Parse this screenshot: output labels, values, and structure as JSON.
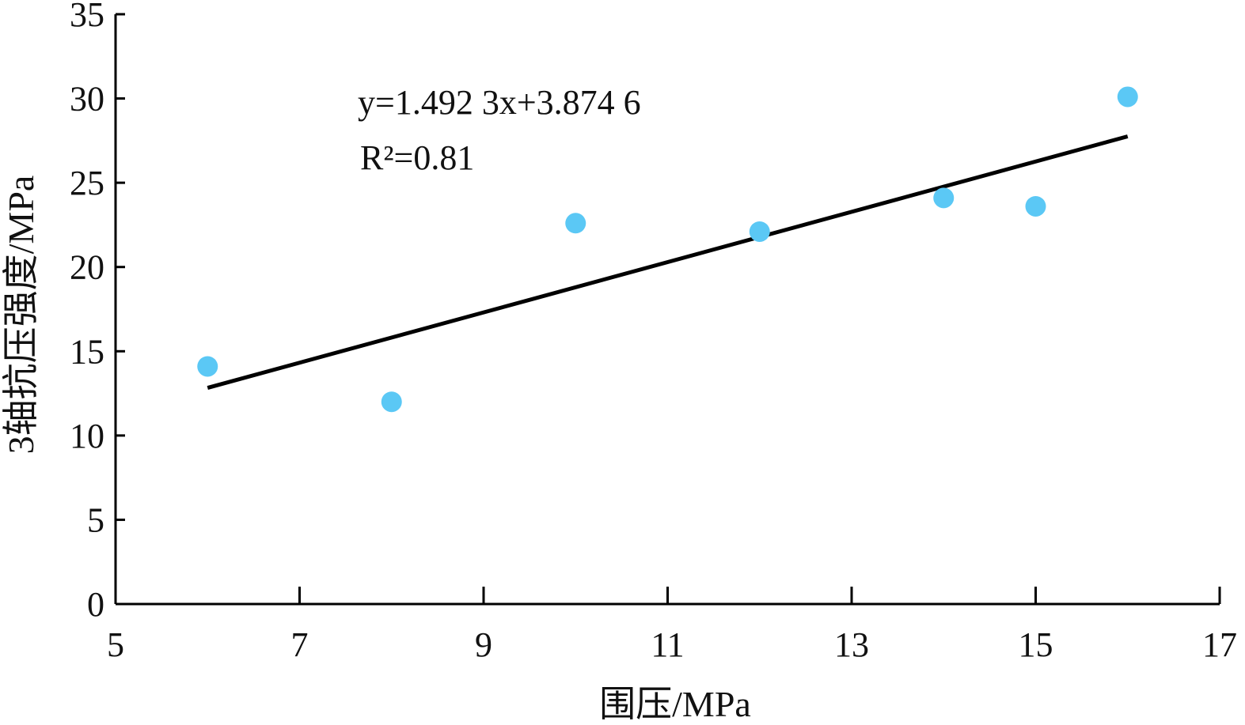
{
  "chart_data": {
    "type": "scatter",
    "x": [
      6,
      8,
      10,
      12,
      14,
      15,
      16
    ],
    "y": [
      14.1,
      12.0,
      22.6,
      22.1,
      24.1,
      23.6,
      30.1
    ],
    "xlabel": "围压/MPa",
    "ylabel": "3轴抗压强度/MPa",
    "xlim": [
      5,
      17
    ],
    "ylim": [
      0,
      35
    ],
    "xticks": [
      "5",
      "7",
      "9",
      "11",
      "13",
      "15",
      "17"
    ],
    "yticks": [
      "0",
      "5",
      "10",
      "15",
      "20",
      "25",
      "30",
      "35"
    ],
    "fit": {
      "slope": 1.4923,
      "intercept": 3.8746,
      "x_range": [
        6,
        16
      ]
    },
    "equation": "y=1.492 3x+3.874 6",
    "r2_label": "R²=0.81",
    "grid": false,
    "colors": {
      "points": "#5bc8f5",
      "line": "#000000"
    }
  }
}
